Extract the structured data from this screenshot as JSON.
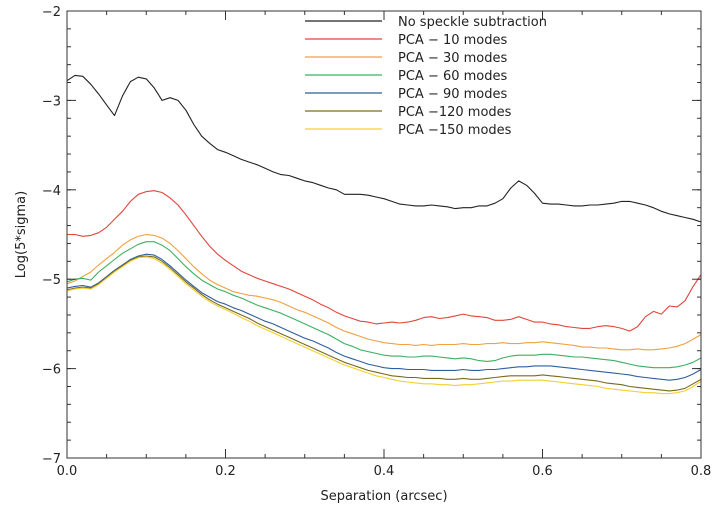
{
  "chart_data": {
    "type": "line",
    "xlabel": "Separation (arcsec)",
    "ylabel": "Log(5*sigma)",
    "xlim": [
      0.0,
      0.8
    ],
    "ylim": [
      -7,
      -2
    ],
    "xticks": [
      0.0,
      0.2,
      0.4,
      0.6,
      0.8
    ],
    "xtick_labels": [
      "0.0",
      "0.2",
      "0.4",
      "0.6",
      "0.8"
    ],
    "yticks": [
      -7,
      -6,
      -5,
      -4,
      -3,
      -2
    ],
    "ytick_labels": [
      "−7",
      "−6",
      "−5",
      "−4",
      "−3",
      "−2"
    ],
    "grid": false,
    "legend_position": "top-right",
    "x": [
      0.0,
      0.01,
      0.02,
      0.03,
      0.04,
      0.05,
      0.06,
      0.07,
      0.08,
      0.09,
      0.1,
      0.11,
      0.12,
      0.13,
      0.14,
      0.15,
      0.16,
      0.17,
      0.18,
      0.19,
      0.2,
      0.21,
      0.22,
      0.23,
      0.24,
      0.25,
      0.26,
      0.27,
      0.28,
      0.29,
      0.3,
      0.31,
      0.32,
      0.33,
      0.34,
      0.35,
      0.36,
      0.37,
      0.38,
      0.39,
      0.4,
      0.41,
      0.42,
      0.43,
      0.44,
      0.45,
      0.46,
      0.47,
      0.48,
      0.49,
      0.5,
      0.51,
      0.52,
      0.53,
      0.54,
      0.55,
      0.56,
      0.57,
      0.58,
      0.59,
      0.6,
      0.61,
      0.62,
      0.63,
      0.64,
      0.65,
      0.66,
      0.67,
      0.68,
      0.69,
      0.7,
      0.71,
      0.72,
      0.73,
      0.74,
      0.75,
      0.76,
      0.77,
      0.78,
      0.79,
      0.8
    ],
    "series": [
      {
        "name": "No speckle subtraction",
        "color": "#222222",
        "values": [
          -2.78,
          -2.72,
          -2.73,
          -2.82,
          -2.93,
          -3.05,
          -3.17,
          -2.95,
          -2.79,
          -2.74,
          -2.76,
          -2.86,
          -3.0,
          -2.97,
          -3.0,
          -3.11,
          -3.27,
          -3.4,
          -3.48,
          -3.55,
          -3.58,
          -3.62,
          -3.66,
          -3.69,
          -3.72,
          -3.76,
          -3.8,
          -3.83,
          -3.84,
          -3.87,
          -3.9,
          -3.92,
          -3.95,
          -3.98,
          -4.0,
          -4.05,
          -4.05,
          -4.05,
          -4.06,
          -4.08,
          -4.1,
          -4.13,
          -4.16,
          -4.17,
          -4.18,
          -4.18,
          -4.17,
          -4.18,
          -4.19,
          -4.21,
          -4.2,
          -4.2,
          -4.18,
          -4.18,
          -4.15,
          -4.1,
          -3.98,
          -3.9,
          -3.95,
          -4.04,
          -4.15,
          -4.16,
          -4.16,
          -4.17,
          -4.18,
          -4.18,
          -4.17,
          -4.17,
          -4.16,
          -4.15,
          -4.13,
          -4.13,
          -4.15,
          -4.17,
          -4.2,
          -4.24,
          -4.27,
          -4.29,
          -4.31,
          -4.33,
          -4.36
        ]
      },
      {
        "name": "PCA − 10 modes",
        "color": "#e0453a",
        "values": [
          -4.5,
          -4.5,
          -4.52,
          -4.51,
          -4.48,
          -4.42,
          -4.33,
          -4.24,
          -4.13,
          -4.05,
          -4.02,
          -4.01,
          -4.03,
          -4.09,
          -4.17,
          -4.28,
          -4.4,
          -4.52,
          -4.63,
          -4.72,
          -4.79,
          -4.85,
          -4.91,
          -4.95,
          -4.99,
          -5.02,
          -5.05,
          -5.08,
          -5.11,
          -5.15,
          -5.19,
          -5.23,
          -5.28,
          -5.32,
          -5.37,
          -5.41,
          -5.44,
          -5.47,
          -5.48,
          -5.5,
          -5.49,
          -5.48,
          -5.49,
          -5.48,
          -5.46,
          -5.43,
          -5.42,
          -5.44,
          -5.43,
          -5.41,
          -5.39,
          -5.41,
          -5.42,
          -5.43,
          -5.46,
          -5.46,
          -5.45,
          -5.42,
          -5.45,
          -5.48,
          -5.48,
          -5.5,
          -5.51,
          -5.53,
          -5.54,
          -5.55,
          -5.55,
          -5.53,
          -5.52,
          -5.53,
          -5.55,
          -5.58,
          -5.53,
          -5.42,
          -5.36,
          -5.39,
          -5.3,
          -5.31,
          -5.24,
          -5.08,
          -4.95
        ]
      },
      {
        "name": "PCA − 30 modes",
        "color": "#f0a040",
        "values": [
          -5.05,
          -5.02,
          -4.97,
          -4.92,
          -4.84,
          -4.77,
          -4.7,
          -4.62,
          -4.56,
          -4.52,
          -4.5,
          -4.51,
          -4.54,
          -4.6,
          -4.68,
          -4.77,
          -4.86,
          -4.94,
          -5.01,
          -5.06,
          -5.1,
          -5.14,
          -5.16,
          -5.18,
          -5.19,
          -5.21,
          -5.23,
          -5.26,
          -5.3,
          -5.34,
          -5.37,
          -5.41,
          -5.45,
          -5.49,
          -5.54,
          -5.58,
          -5.61,
          -5.64,
          -5.67,
          -5.69,
          -5.71,
          -5.72,
          -5.73,
          -5.73,
          -5.74,
          -5.73,
          -5.74,
          -5.73,
          -5.73,
          -5.73,
          -5.72,
          -5.73,
          -5.73,
          -5.72,
          -5.72,
          -5.71,
          -5.72,
          -5.72,
          -5.71,
          -5.71,
          -5.7,
          -5.71,
          -5.72,
          -5.73,
          -5.74,
          -5.76,
          -5.76,
          -5.77,
          -5.77,
          -5.78,
          -5.79,
          -5.79,
          -5.78,
          -5.79,
          -5.79,
          -5.78,
          -5.77,
          -5.75,
          -5.72,
          -5.67,
          -5.62
        ]
      },
      {
        "name": "PCA − 60 modes",
        "color": "#3cb060",
        "values": [
          -5.03,
          -5.0,
          -4.99,
          -5.01,
          -4.92,
          -4.85,
          -4.78,
          -4.71,
          -4.66,
          -4.61,
          -4.58,
          -4.58,
          -4.62,
          -4.68,
          -4.77,
          -4.86,
          -4.94,
          -5.01,
          -5.06,
          -5.11,
          -5.14,
          -5.18,
          -5.21,
          -5.25,
          -5.29,
          -5.32,
          -5.35,
          -5.38,
          -5.42,
          -5.46,
          -5.5,
          -5.54,
          -5.58,
          -5.62,
          -5.67,
          -5.72,
          -5.75,
          -5.79,
          -5.81,
          -5.83,
          -5.85,
          -5.86,
          -5.86,
          -5.87,
          -5.87,
          -5.86,
          -5.86,
          -5.87,
          -5.88,
          -5.89,
          -5.88,
          -5.89,
          -5.91,
          -5.92,
          -5.91,
          -5.88,
          -5.86,
          -5.85,
          -5.85,
          -5.85,
          -5.84,
          -5.84,
          -5.85,
          -5.86,
          -5.87,
          -5.87,
          -5.88,
          -5.89,
          -5.9,
          -5.91,
          -5.93,
          -5.95,
          -5.97,
          -5.98,
          -5.99,
          -5.99,
          -5.99,
          -5.98,
          -5.96,
          -5.93,
          -5.88
        ]
      },
      {
        "name": "PCA − 90 modes",
        "color": "#2f5f9e",
        "values": [
          -5.1,
          -5.08,
          -5.07,
          -5.09,
          -5.04,
          -4.97,
          -4.9,
          -4.84,
          -4.78,
          -4.74,
          -4.72,
          -4.73,
          -4.78,
          -4.85,
          -4.93,
          -5.01,
          -5.08,
          -5.15,
          -5.2,
          -5.25,
          -5.28,
          -5.32,
          -5.35,
          -5.39,
          -5.43,
          -5.47,
          -5.5,
          -5.54,
          -5.58,
          -5.62,
          -5.66,
          -5.69,
          -5.73,
          -5.77,
          -5.82,
          -5.86,
          -5.89,
          -5.92,
          -5.95,
          -5.97,
          -5.99,
          -6.0,
          -6.0,
          -6.01,
          -6.01,
          -6.01,
          -6.02,
          -6.02,
          -6.02,
          -6.02,
          -6.01,
          -6.02,
          -6.02,
          -6.01,
          -6.01,
          -6.0,
          -5.99,
          -5.98,
          -5.98,
          -5.97,
          -5.97,
          -5.97,
          -5.98,
          -5.99,
          -6.0,
          -6.01,
          -6.02,
          -6.03,
          -6.04,
          -6.05,
          -6.06,
          -6.07,
          -6.09,
          -6.1,
          -6.11,
          -6.12,
          -6.13,
          -6.12,
          -6.1,
          -6.06,
          -6.01
        ]
      },
      {
        "name": "PCA −120 modes",
        "color": "#7a6a1e",
        "values": [
          -5.12,
          -5.1,
          -5.09,
          -5.1,
          -5.05,
          -4.98,
          -4.91,
          -4.85,
          -4.79,
          -4.75,
          -4.74,
          -4.75,
          -4.8,
          -4.87,
          -4.95,
          -5.03,
          -5.1,
          -5.17,
          -5.23,
          -5.28,
          -5.32,
          -5.36,
          -5.4,
          -5.44,
          -5.49,
          -5.53,
          -5.57,
          -5.61,
          -5.65,
          -5.69,
          -5.73,
          -5.77,
          -5.81,
          -5.85,
          -5.89,
          -5.93,
          -5.96,
          -5.99,
          -6.02,
          -6.04,
          -6.06,
          -6.08,
          -6.09,
          -6.1,
          -6.1,
          -6.11,
          -6.11,
          -6.11,
          -6.12,
          -6.12,
          -6.11,
          -6.12,
          -6.12,
          -6.11,
          -6.1,
          -6.09,
          -6.08,
          -6.08,
          -6.08,
          -6.08,
          -6.07,
          -6.08,
          -6.09,
          -6.1,
          -6.11,
          -6.12,
          -6.13,
          -6.14,
          -6.16,
          -6.17,
          -6.18,
          -6.2,
          -6.21,
          -6.22,
          -6.23,
          -6.24,
          -6.25,
          -6.24,
          -6.22,
          -6.17,
          -6.12
        ]
      },
      {
        "name": "PCA −150 modes",
        "color": "#f2d030",
        "values": [
          -5.13,
          -5.11,
          -5.1,
          -5.11,
          -5.06,
          -4.99,
          -4.92,
          -4.86,
          -4.8,
          -4.76,
          -4.75,
          -4.77,
          -4.82,
          -4.89,
          -4.97,
          -5.05,
          -5.12,
          -5.19,
          -5.25,
          -5.3,
          -5.34,
          -5.38,
          -5.43,
          -5.47,
          -5.52,
          -5.56,
          -5.6,
          -5.64,
          -5.68,
          -5.72,
          -5.76,
          -5.8,
          -5.84,
          -5.88,
          -5.92,
          -5.96,
          -5.99,
          -6.02,
          -6.05,
          -6.08,
          -6.1,
          -6.12,
          -6.14,
          -6.15,
          -6.16,
          -6.17,
          -6.17,
          -6.18,
          -6.18,
          -6.19,
          -6.18,
          -6.18,
          -6.17,
          -6.16,
          -6.15,
          -6.14,
          -6.14,
          -6.13,
          -6.13,
          -6.13,
          -6.13,
          -6.14,
          -6.15,
          -6.16,
          -6.17,
          -6.18,
          -6.19,
          -6.2,
          -6.22,
          -6.23,
          -6.24,
          -6.25,
          -6.26,
          -6.27,
          -6.27,
          -6.28,
          -6.28,
          -6.27,
          -6.25,
          -6.2,
          -6.14
        ]
      }
    ]
  }
}
